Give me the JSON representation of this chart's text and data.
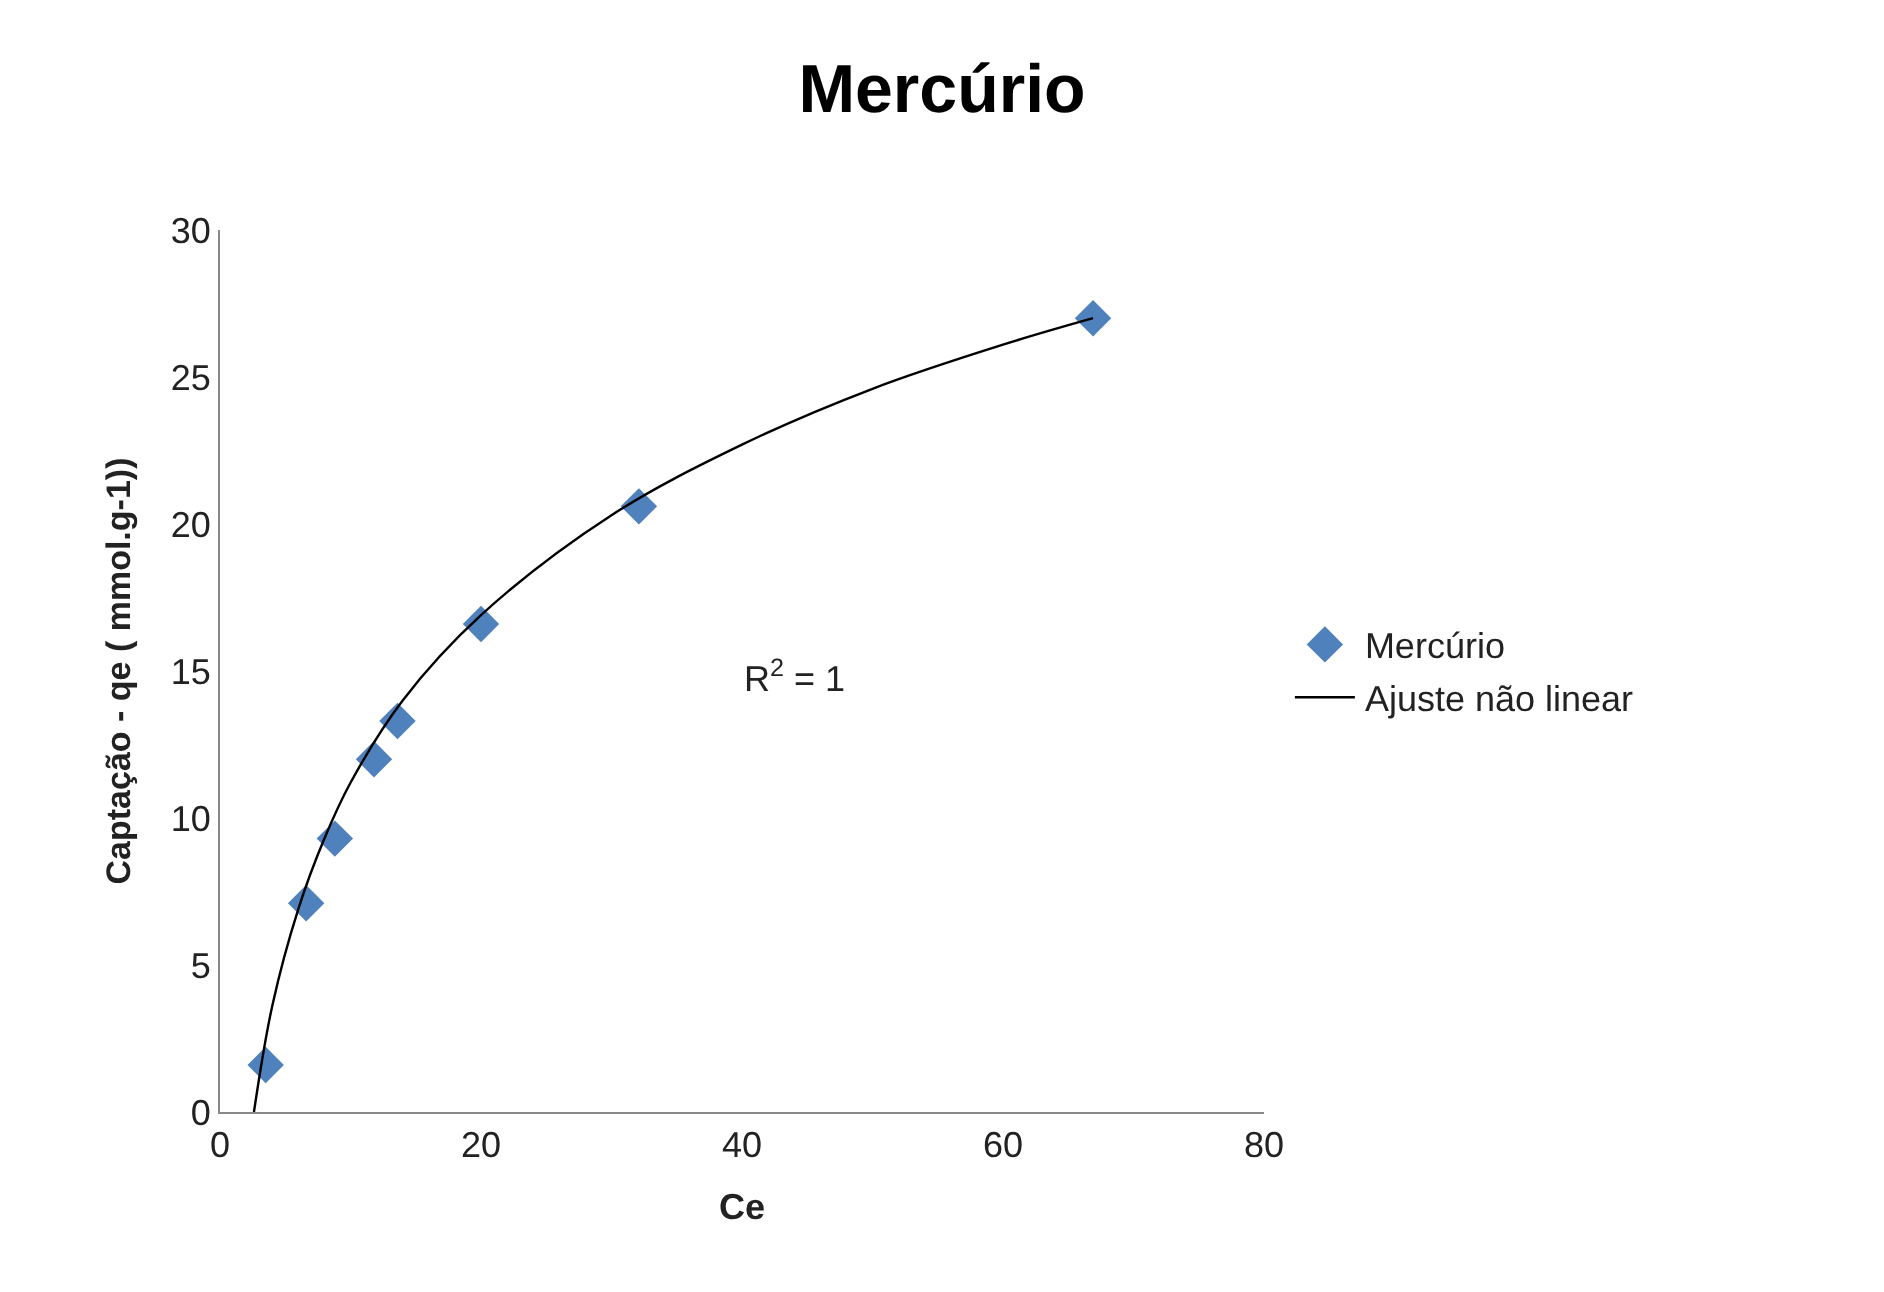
{
  "chart_data": {
    "type": "scatter",
    "title": "Mercúrio",
    "xlabel": "Ce",
    "ylabel": "Captação - qe ( mmol.g-1))",
    "xlim": [
      0,
      80
    ],
    "xticks": [
      0,
      20,
      40,
      60,
      80
    ],
    "ylim": [
      0,
      30
    ],
    "yticks": [
      0,
      5,
      10,
      15,
      20,
      25,
      30
    ],
    "legend": "right",
    "marker": "diamond",
    "annotations": [
      "R$^{2}$ = 1"
    ],
    "series": [
      {
        "name": "Mercúrio",
        "color": "#4f81bd",
        "x": [
          3.5,
          6.6,
          8.8,
          11.8,
          13.6,
          20.0,
          32.1,
          66.9
        ],
        "values": [
          1.6,
          7.1,
          9.3,
          12.0,
          13.3,
          16.6,
          20.6,
          27.0
        ]
      },
      {
        "name": "Ajuste não linear",
        "type": "line",
        "color": "#000000",
        "marker": "none",
        "line_style": "solid",
        "x": [
          2.6,
          4,
          6,
          8,
          10,
          14,
          20,
          30,
          40,
          50,
          60,
          66.9
        ],
        "values": [
          0,
          3.6,
          6.9,
          9.3,
          11.2,
          14.0,
          16.9,
          20.3,
          22.7,
          24.6,
          26.1,
          27.0
        ]
      }
    ]
  }
}
